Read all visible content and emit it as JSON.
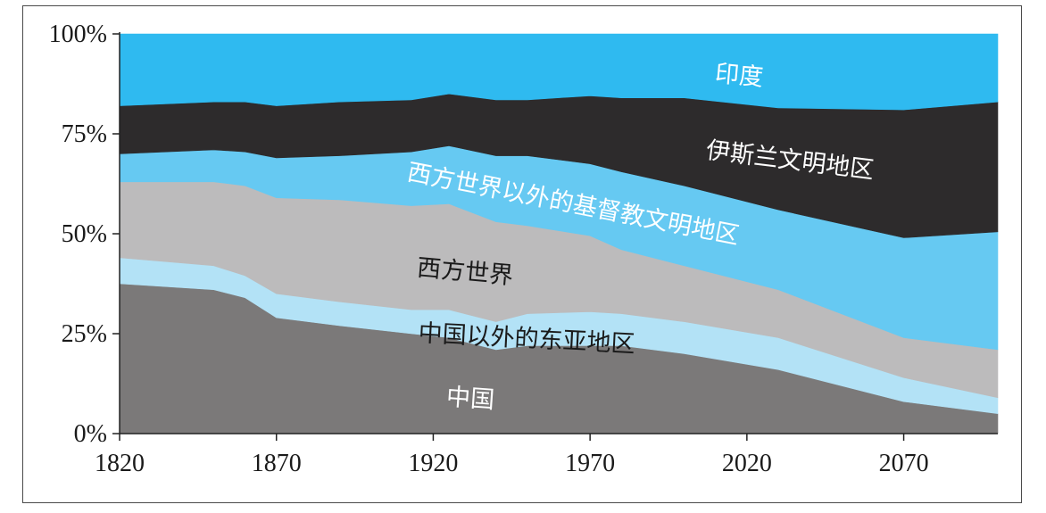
{
  "chart_data": {
    "type": "area",
    "stacked": true,
    "normalized": true,
    "x": [
      1820,
      1850,
      1860,
      1870,
      1890,
      1913,
      1925,
      1940,
      1950,
      1970,
      1980,
      2000,
      2030,
      2070,
      2100
    ],
    "xticks": [
      "1820",
      "1870",
      "1920",
      "1970",
      "2020",
      "2070"
    ],
    "yticks": [
      "0%",
      "25%",
      "50%",
      "75%",
      "100%"
    ],
    "ylim": [
      0,
      100
    ],
    "series": [
      {
        "name": "中国",
        "color": "#7b7979",
        "label_color": "#ffffff",
        "values": [
          37.5,
          36,
          34,
          29,
          27,
          25,
          24,
          21,
          22,
          22,
          22,
          20,
          16,
          8,
          5
        ]
      },
      {
        "name": "中国以外的东亚地区",
        "color": "#b3e2f6",
        "label_color": "#1a1a1a",
        "values": [
          6.5,
          6,
          5.5,
          6,
          6,
          6,
          7,
          7,
          8,
          8.5,
          8,
          8,
          8,
          6,
          4
        ]
      },
      {
        "name": "西方世界",
        "color": "#bcbbbc",
        "label_color": "#1a1a1a",
        "values": [
          19,
          21,
          22.5,
          24,
          25.5,
          26,
          26.5,
          25,
          22,
          19,
          16,
          14,
          12,
          10,
          12
        ]
      },
      {
        "name": "西方世界以外的基督教文明地区",
        "color": "#66c9f2",
        "label_color": "#ffffff",
        "values": [
          7,
          8,
          8.5,
          10,
          11,
          13.5,
          14.5,
          16.5,
          17.5,
          18,
          19.5,
          20,
          20,
          25,
          29.5
        ]
      },
      {
        "name": "伊斯兰文明地区",
        "color": "#2d2b2c",
        "label_color": "#ffffff",
        "values": [
          12,
          12,
          12.5,
          13,
          13.5,
          13,
          13,
          14,
          14,
          17,
          18.5,
          22,
          25.5,
          32,
          32.5
        ]
      },
      {
        "name": "印度",
        "color": "#2fbaf0",
        "label_color": "#ffffff",
        "values": [
          18,
          17,
          17,
          18,
          17,
          16.5,
          15,
          16.5,
          16.5,
          15.5,
          16,
          16,
          18.5,
          19,
          17
        ]
      }
    ]
  }
}
